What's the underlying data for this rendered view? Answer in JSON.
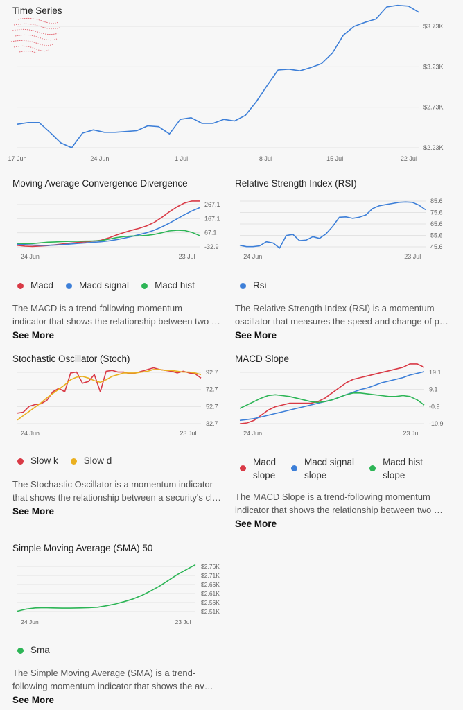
{
  "colors": {
    "red": "#d93a46",
    "blue": "#3d7fd8",
    "green": "#2db556",
    "yellow": "#eab020",
    "grid": "#e3e3e3",
    "axis": "#888888"
  },
  "panels": {
    "time_series": {
      "title": "Time Series"
    },
    "macd": {
      "title": "Moving Average Convergence Divergence",
      "legend": [
        "Macd",
        "Macd signal",
        "Macd hist"
      ],
      "desc_lines": [
        "The MACD is a trend-following momentum",
        "indicator that shows the relationship between two moving averages of a security's price."
      ],
      "see_more": "See More"
    },
    "rsi": {
      "title": "Relative Strength Index (RSI)",
      "legend": [
        "Rsi"
      ],
      "desc_lines": [
        "The Relative Strength Index (RSI) is a momentum",
        "oscillator that measures the speed and change of price movements."
      ],
      "see_more": "See More"
    },
    "stoch": {
      "title": "Stochastic Oscillator (Stoch)",
      "legend": [
        "Slow k",
        "Slow d"
      ],
      "desc_lines": [
        "The Stochastic Oscillator is a momentum indicator",
        "that shows the relationship between a security's closing price and its price range."
      ],
      "see_more": "See More"
    },
    "macd_slope": {
      "title": "MACD Slope",
      "legend": [
        [
          "Macd",
          "slope"
        ],
        [
          "Macd signal",
          "slope"
        ],
        [
          "Macd hist",
          "slope"
        ]
      ],
      "desc_lines": [
        "The MACD Slope is a trend-following momentum",
        "indicator that shows the relationship between two moving averages slope."
      ],
      "see_more": "See More"
    },
    "sma": {
      "title": "Simple Moving Average (SMA) 50",
      "legend": [
        "Sma"
      ],
      "desc_lines": [
        "The Simple Moving Average (SMA) is a trend-",
        "following momentum indicator that shows the average price."
      ],
      "see_more": "See More"
    }
  },
  "chart_data": [
    {
      "id": "time_series",
      "type": "line",
      "x_ticks": [
        "17 Jun",
        "24 Jun",
        "1 Jul",
        "8 Jul",
        "15 Jul",
        "22 Jul"
      ],
      "y_ticks": [
        "$2.23K",
        "$2.73K",
        "$3.23K",
        "$3.73K"
      ],
      "ylim": [
        2230,
        3730
      ],
      "series": [
        {
          "color": "blue",
          "values": [
            2520,
            2540,
            2540,
            2420,
            2290,
            2230,
            2410,
            2450,
            2420,
            2420,
            2430,
            2440,
            2500,
            2490,
            2400,
            2580,
            2600,
            2530,
            2530,
            2580,
            2560,
            2630,
            2800,
            3000,
            3190,
            3200,
            3180,
            3220,
            3270,
            3400,
            3620,
            3730,
            3780,
            3820,
            3970,
            3990,
            3980,
            3900
          ]
        }
      ]
    },
    {
      "id": "macd",
      "type": "line",
      "x_ticks": [
        "24 Jun",
        "23 Jul"
      ],
      "y_ticks": [
        "-32.9",
        "67.1",
        "167.1",
        "267.1"
      ],
      "ylim": [
        -32.9,
        267.1
      ],
      "series": [
        {
          "color": "red",
          "values": [
            -22,
            -28,
            -30,
            -27,
            -24,
            -18,
            -12,
            -6,
            -2,
            3,
            8,
            14,
            30,
            50,
            68,
            84,
            98,
            115,
            140,
            175,
            215,
            250,
            278,
            292,
            292
          ]
        },
        {
          "color": "blue",
          "values": [
            -14,
            -17,
            -20,
            -22,
            -22,
            -20,
            -17,
            -13,
            -9,
            -5,
            -1,
            3,
            9,
            18,
            28,
            40,
            53,
            67,
            85,
            108,
            135,
            165,
            195,
            222,
            245
          ]
        },
        {
          "color": "green",
          "values": [
            -8,
            -10,
            -10,
            -5,
            0,
            2,
            5,
            6,
            7,
            8,
            9,
            11,
            21,
            32,
            40,
            44,
            45,
            48,
            55,
            67,
            80,
            85,
            83,
            70,
            47
          ]
        }
      ]
    },
    {
      "id": "rsi",
      "type": "line",
      "x_ticks": [
        "24 Jun",
        "23 Jul"
      ],
      "y_ticks": [
        "45.6",
        "55.6",
        "65.6",
        "75.6",
        "85.6"
      ],
      "ylim": [
        45.6,
        85.6
      ],
      "series": [
        {
          "color": "blue",
          "values": [
            47,
            45.8,
            45.8,
            46.5,
            50,
            49,
            44.5,
            55.5,
            56.5,
            51,
            51.5,
            54.5,
            53,
            57,
            63.5,
            71.5,
            71.8,
            70.5,
            71.5,
            73.5,
            79,
            81.5,
            82.5,
            83.5,
            84.5,
            84.8,
            84.5,
            82,
            78
          ]
        }
      ]
    },
    {
      "id": "stoch",
      "type": "line",
      "x_ticks": [
        "24 Jun",
        "23 Jul"
      ],
      "y_ticks": [
        "32.7",
        "52.7",
        "72.7",
        "92.7"
      ],
      "ylim": [
        32.7,
        92.7
      ],
      "series": [
        {
          "color": "red",
          "values": [
            45,
            46,
            53,
            55,
            56,
            60,
            70,
            74,
            70,
            92,
            93,
            80,
            82,
            90,
            70,
            94,
            95,
            93,
            93,
            91,
            92,
            94,
            96,
            98,
            96,
            95,
            94,
            92,
            94,
            92,
            91,
            86
          ]
        },
        {
          "color": "yellow",
          "values": [
            37,
            42,
            47,
            52,
            57,
            63,
            68,
            73,
            78,
            84,
            87,
            88,
            86,
            83,
            81,
            84,
            88,
            90,
            92,
            92,
            92,
            93,
            94,
            96,
            96,
            95,
            95,
            94,
            93,
            93,
            92,
            90
          ]
        }
      ]
    },
    {
      "id": "macd_slope",
      "type": "line",
      "x_ticks": [
        "24 Jun",
        "23 Jul"
      ],
      "y_ticks": [
        "-10.9",
        "-0.9",
        "9.1",
        "19.1"
      ],
      "ylim": [
        -10.9,
        19.1
      ],
      "series": [
        {
          "color": "red",
          "values": [
            -11,
            -10.5,
            -9,
            -6,
            -3,
            -1,
            0,
            1,
            1,
            1,
            1,
            2,
            4,
            7,
            10,
            13,
            15,
            16,
            17,
            18,
            19,
            20,
            21,
            22,
            24,
            24,
            22
          ]
        },
        {
          "color": "blue",
          "values": [
            -9,
            -8.5,
            -8,
            -7,
            -6,
            -5,
            -4,
            -3,
            -2,
            -1,
            0,
            1,
            2,
            3,
            4.5,
            6,
            7.5,
            9,
            10,
            11.5,
            13,
            14,
            15,
            16,
            17.5,
            18.5,
            19.5
          ]
        },
        {
          "color": "green",
          "values": [
            -2,
            0,
            2,
            4,
            5.5,
            6,
            5.5,
            5,
            4,
            3,
            2,
            1.5,
            2,
            3,
            4.5,
            6,
            7,
            7,
            6.5,
            6,
            5.5,
            5,
            5,
            5.5,
            5,
            3,
            0
          ]
        }
      ]
    },
    {
      "id": "sma",
      "type": "line",
      "x_ticks": [
        "24 Jun",
        "23 Jul"
      ],
      "y_ticks": [
        "$2.51K",
        "$2.56K",
        "$2.61K",
        "$2.66K",
        "$2.71K",
        "$2.76K"
      ],
      "ylim": [
        2510,
        2760
      ],
      "series": [
        {
          "color": "green",
          "values": [
            2512,
            2524,
            2530,
            2531,
            2530,
            2529,
            2529,
            2530,
            2531,
            2534,
            2542,
            2552,
            2565,
            2580,
            2600,
            2625,
            2652,
            2684,
            2716,
            2743,
            2770
          ]
        }
      ]
    }
  ]
}
